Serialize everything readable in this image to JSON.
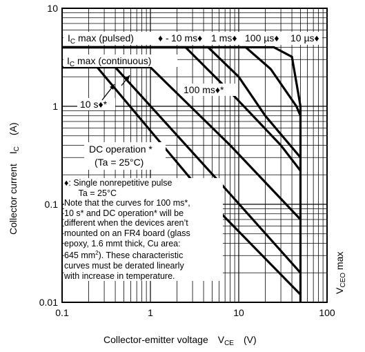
{
  "chart_data": {
    "type": "line",
    "x_scale": "log",
    "y_scale": "log",
    "xlim": [
      0.1,
      100
    ],
    "ylim": [
      0.01,
      10
    ],
    "grid": true,
    "x_tick_labels": [
      "0.1",
      "1",
      "10",
      "100"
    ],
    "y_tick_labels": [
      "0.01",
      "0.1",
      "1",
      "10"
    ],
    "xlabel": {
      "main": "Collector-emitter voltage",
      "symbol": "V",
      "sub": "CE",
      "unit": "(V)"
    },
    "ylabel": {
      "main": "Collector current",
      "symbol": "I",
      "sub": "C",
      "unit": "(A)"
    },
    "series": [
      {
        "name": "10 µs",
        "points": [
          [
            0.1,
            4.0
          ],
          [
            25,
            4.0
          ],
          [
            40,
            3.2
          ],
          [
            50,
            1.0
          ]
        ]
      },
      {
        "name": "100 µs",
        "points": [
          [
            0.1,
            4.0
          ],
          [
            12,
            4.0
          ],
          [
            23,
            2.4
          ],
          [
            45,
            1.0
          ],
          [
            50,
            0.8
          ]
        ]
      },
      {
        "name": "1 ms",
        "points": [
          [
            0.1,
            4.0
          ],
          [
            4.5,
            4.0
          ],
          [
            10,
            2.0
          ],
          [
            20,
            0.8
          ],
          [
            50,
            0.3
          ]
        ]
      },
      {
        "name": "10 ms",
        "points": [
          [
            0.1,
            4.0
          ],
          [
            2.5,
            4.0
          ],
          [
            8,
            1.4
          ],
          [
            30,
            0.4
          ],
          [
            50,
            0.22
          ]
        ]
      },
      {
        "name": "100 ms*",
        "points": [
          [
            0.1,
            2.5
          ],
          [
            1,
            2.5
          ],
          [
            8,
            0.4
          ],
          [
            50,
            0.07
          ]
        ]
      },
      {
        "name": "10 s*",
        "points": [
          [
            0.1,
            2.5
          ],
          [
            0.4,
            2.5
          ],
          [
            6,
            0.17
          ],
          [
            50,
            0.02
          ]
        ]
      },
      {
        "name": "DC operation *",
        "points": [
          [
            0.1,
            2.5
          ],
          [
            0.25,
            2.5
          ],
          [
            5,
            0.1
          ],
          [
            50,
            0.012
          ]
        ]
      }
    ],
    "limits": [
      {
        "name": "IC max (pulsed)",
        "value": 4.0
      },
      {
        "name": "IC max (continuous)",
        "value": 2.5
      },
      {
        "name": "VCEO max",
        "value": 50
      }
    ]
  },
  "annotations": {
    "ic_pulsed": {
      "prefix": "I",
      "sub": "C",
      "rest": " max (pulsed)"
    },
    "ic_pulsed_marker": "♦ -",
    "ic_cont": {
      "prefix": "I",
      "sub": "C",
      "rest": " max (continuous)"
    },
    "pulse_labels": [
      "10 ms♦",
      "1 ms♦",
      "100 µs♦",
      "10 µs♦"
    ],
    "ms100": "100 ms♦*",
    "s10": "10 s♦*",
    "dc_line1": "DC operation *",
    "dc_line2": "(Ta = 25°C)",
    "vceo": {
      "prefix": "V",
      "sub": "CEO",
      "rest": " max"
    }
  },
  "note": {
    "lines": [
      "♦: Single nonrepetitive pulse",
      "      Ta = 25°C",
      "Note that the curves for 100 ms*,",
      "10 s* and DC operation* will be",
      "different when the devices aren’t",
      "mounted on an FR4 board (glass",
      "epoxy, 1.6 mmt thick, Cu area:",
      "645 mm",
      "curves must be derated linearly",
      "with increase in temperature."
    ],
    "sup": "2",
    "line8_rest": "). These characteristic"
  }
}
